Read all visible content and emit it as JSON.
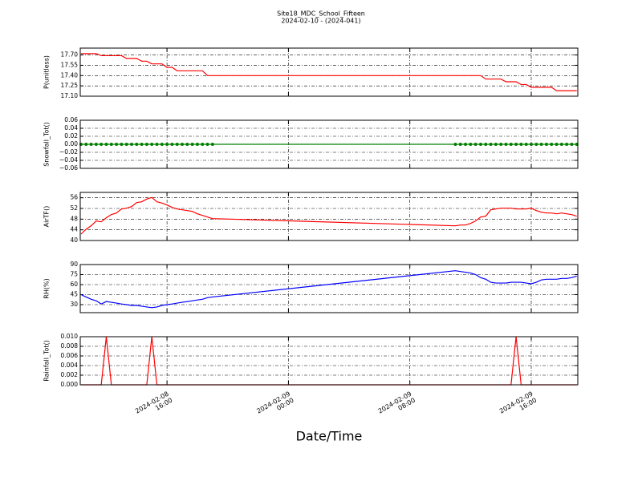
{
  "title": "Site18_MDC_School_Fifteen",
  "subtitle": "2024-02-10 - (2024-041)",
  "xlabel": "Date/Time",
  "xlim": [
    "2024-02-08 10:17",
    "2024-02-09 19:04"
  ],
  "xticks": [
    {
      "value": "2024-02-08 16:00",
      "label": "2024-02-08\n16:00"
    },
    {
      "value": "2024-02-09 00:00",
      "label": "2024-02-09\n00:00"
    },
    {
      "value": "2024-02-09 08:00",
      "label": "2024-02-09\n08:00"
    },
    {
      "value": "2024-02-09 16:00",
      "label": "2024-02-09\n16:00"
    }
  ],
  "chart_data": [
    {
      "type": "line",
      "ylabel": "P(unitless)",
      "x": [
        "2024-02-08 10:20",
        "2024-02-08 10:40",
        "2024-02-08 11:00",
        "2024-02-08 11:20",
        "2024-02-08 11:40",
        "2024-02-08 12:00",
        "2024-02-08 12:20",
        "2024-02-08 12:40",
        "2024-02-08 13:00",
        "2024-02-08 13:20",
        "2024-02-08 13:40",
        "2024-02-08 14:00",
        "2024-02-08 14:20",
        "2024-02-08 14:40",
        "2024-02-08 15:00",
        "2024-02-08 15:20",
        "2024-02-08 15:40",
        "2024-02-08 16:00",
        "2024-02-08 16:20",
        "2024-02-08 16:40",
        "2024-02-08 17:00",
        "2024-02-08 17:20",
        "2024-02-08 17:40",
        "2024-02-08 18:00",
        "2024-02-08 18:20",
        "2024-02-08 18:40",
        "2024-02-08 19:00",
        "2024-02-09 11:00",
        "2024-02-09 11:20",
        "2024-02-09 11:40",
        "2024-02-09 12:00",
        "2024-02-09 12:20",
        "2024-02-09 12:40",
        "2024-02-09 13:00",
        "2024-02-09 13:20",
        "2024-02-09 13:40",
        "2024-02-09 14:00",
        "2024-02-09 14:20",
        "2024-02-09 14:40",
        "2024-02-09 15:00",
        "2024-02-09 15:20",
        "2024-02-09 15:40",
        "2024-02-09 16:00",
        "2024-02-09 16:20",
        "2024-02-09 16:40",
        "2024-02-09 17:00",
        "2024-02-09 17:20",
        "2024-02-09 17:40",
        "2024-02-09 18:00",
        "2024-02-09 18:20",
        "2024-02-09 18:40",
        "2024-02-09 19:00"
      ],
      "series": [
        {
          "color": "#ff0000",
          "values": [
            17.72,
            17.72,
            17.72,
            17.72,
            17.69,
            17.69,
            17.69,
            17.69,
            17.69,
            17.65,
            17.65,
            17.65,
            17.61,
            17.61,
            17.57,
            17.57,
            17.57,
            17.52,
            17.52,
            17.47,
            17.47,
            17.47,
            17.47,
            17.47,
            17.47,
            17.4,
            17.4,
            17.4,
            17.4,
            17.4,
            17.4,
            17.4,
            17.4,
            17.35,
            17.35,
            17.35,
            17.35,
            17.31,
            17.31,
            17.31,
            17.27,
            17.27,
            17.23,
            17.23,
            17.23,
            17.23,
            17.23,
            17.18,
            17.18,
            17.18,
            17.18,
            17.18
          ]
        }
      ],
      "ylim": [
        17.1,
        17.8
      ],
      "yticks": [
        {
          "value": 17.1,
          "label": "17.10"
        },
        {
          "value": 17.25,
          "label": "17.25"
        },
        {
          "value": 17.4,
          "label": "17.40"
        },
        {
          "value": 17.55,
          "label": "17.55"
        },
        {
          "value": 17.7,
          "label": "17.70"
        }
      ],
      "grid": true
    },
    {
      "type": "line",
      "ylabel": "Snowfall_Tot()",
      "x": [
        "2024-02-08 10:20",
        "2024-02-08 10:40",
        "2024-02-08 11:00",
        "2024-02-08 11:20",
        "2024-02-08 11:40",
        "2024-02-08 12:00",
        "2024-02-08 12:20",
        "2024-02-08 12:40",
        "2024-02-08 13:00",
        "2024-02-08 13:20",
        "2024-02-08 13:40",
        "2024-02-08 14:00",
        "2024-02-08 14:20",
        "2024-02-08 14:40",
        "2024-02-08 15:00",
        "2024-02-08 15:20",
        "2024-02-08 15:40",
        "2024-02-08 16:00",
        "2024-02-08 16:20",
        "2024-02-08 16:40",
        "2024-02-08 17:00",
        "2024-02-08 17:20",
        "2024-02-08 17:40",
        "2024-02-08 18:00",
        "2024-02-08 18:20",
        "2024-02-08 18:40",
        "2024-02-08 19:00",
        "2024-02-09 11:00",
        "2024-02-09 11:20",
        "2024-02-09 11:40",
        "2024-02-09 12:00",
        "2024-02-09 12:20",
        "2024-02-09 12:40",
        "2024-02-09 13:00",
        "2024-02-09 13:20",
        "2024-02-09 13:40",
        "2024-02-09 14:00",
        "2024-02-09 14:20",
        "2024-02-09 14:40",
        "2024-02-09 15:00",
        "2024-02-09 15:20",
        "2024-02-09 15:40",
        "2024-02-09 16:00",
        "2024-02-09 16:20",
        "2024-02-09 16:40",
        "2024-02-09 17:00",
        "2024-02-09 17:20",
        "2024-02-09 17:40",
        "2024-02-09 18:00",
        "2024-02-09 18:20",
        "2024-02-09 18:40",
        "2024-02-09 19:00"
      ],
      "series": [
        {
          "color": "#008000",
          "markers": true,
          "values": [
            0,
            0,
            0,
            0,
            0,
            0,
            0,
            0,
            0,
            0,
            0,
            0,
            0,
            0,
            0,
            0,
            0,
            0,
            0,
            0,
            0,
            0,
            0,
            0,
            0,
            0,
            0,
            0,
            0,
            0,
            0,
            0,
            0,
            0,
            0,
            0,
            0,
            0,
            0,
            0,
            0,
            0,
            0,
            0,
            0,
            0,
            0,
            0,
            0,
            0,
            0,
            0
          ]
        }
      ],
      "ylim": [
        -0.06,
        0.06
      ],
      "yticks": [
        {
          "value": -0.06,
          "label": "−0.06"
        },
        {
          "value": -0.04,
          "label": "−0.04"
        },
        {
          "value": -0.02,
          "label": "−0.02"
        },
        {
          "value": 0,
          "label": "0.00"
        },
        {
          "value": 0.02,
          "label": "0.02"
        },
        {
          "value": 0.04,
          "label": "0.04"
        },
        {
          "value": 0.06,
          "label": "0.06"
        }
      ],
      "grid": true
    },
    {
      "type": "line",
      "ylabel": "AirTF()",
      "x": [
        "2024-02-08 10:20",
        "2024-02-08 10:40",
        "2024-02-08 11:00",
        "2024-02-08 11:20",
        "2024-02-08 11:40",
        "2024-02-08 12:00",
        "2024-02-08 12:20",
        "2024-02-08 12:40",
        "2024-02-08 13:00",
        "2024-02-08 13:20",
        "2024-02-08 13:40",
        "2024-02-08 14:00",
        "2024-02-08 14:20",
        "2024-02-08 14:40",
        "2024-02-08 15:00",
        "2024-02-08 15:20",
        "2024-02-08 15:40",
        "2024-02-08 16:00",
        "2024-02-08 16:20",
        "2024-02-08 16:40",
        "2024-02-08 17:00",
        "2024-02-08 17:20",
        "2024-02-08 17:40",
        "2024-02-08 18:00",
        "2024-02-08 18:20",
        "2024-02-08 18:40",
        "2024-02-08 19:00",
        "2024-02-09 11:00",
        "2024-02-09 11:20",
        "2024-02-09 11:40",
        "2024-02-09 12:00",
        "2024-02-09 12:20",
        "2024-02-09 12:40",
        "2024-02-09 13:00",
        "2024-02-09 13:20",
        "2024-02-09 13:40",
        "2024-02-09 14:00",
        "2024-02-09 14:20",
        "2024-02-09 14:40",
        "2024-02-09 15:00",
        "2024-02-09 15:20",
        "2024-02-09 15:40",
        "2024-02-09 16:00",
        "2024-02-09 16:20",
        "2024-02-09 16:40",
        "2024-02-09 17:00",
        "2024-02-09 17:20",
        "2024-02-09 17:40",
        "2024-02-09 18:00",
        "2024-02-09 18:20",
        "2024-02-09 18:40",
        "2024-02-09 19:00"
      ],
      "series": [
        {
          "color": "#ff0000",
          "values": [
            42.4,
            44.2,
            45.5,
            47.3,
            47.0,
            48.5,
            49.7,
            50.3,
            51.8,
            52.1,
            52.7,
            54.2,
            54.5,
            55.5,
            56.1,
            54.5,
            54.0,
            53.3,
            52.4,
            51.8,
            51.5,
            51.2,
            50.9,
            50.0,
            49.4,
            48.8,
            48.2,
            45.5,
            45.8,
            45.8,
            46.4,
            47.3,
            48.8,
            49.1,
            51.5,
            51.8,
            52.1,
            52.1,
            52.1,
            51.8,
            51.8,
            51.8,
            52.1,
            51.2,
            50.6,
            50.3,
            50.3,
            50.0,
            50.3,
            50.0,
            49.7,
            49.1
          ]
        }
      ],
      "ylim": [
        40,
        58
      ],
      "yticks": [
        40,
        44,
        48,
        52,
        56
      ],
      "grid": true
    },
    {
      "type": "line",
      "ylabel": "RH(%)",
      "x": [
        "2024-02-08 10:20",
        "2024-02-08 10:40",
        "2024-02-08 11:00",
        "2024-02-08 11:20",
        "2024-02-08 11:40",
        "2024-02-08 12:00",
        "2024-02-08 12:20",
        "2024-02-08 12:40",
        "2024-02-08 13:00",
        "2024-02-08 13:20",
        "2024-02-08 13:40",
        "2024-02-08 14:00",
        "2024-02-08 14:20",
        "2024-02-08 14:40",
        "2024-02-08 15:00",
        "2024-02-08 15:20",
        "2024-02-08 15:40",
        "2024-02-08 16:00",
        "2024-02-08 16:20",
        "2024-02-08 16:40",
        "2024-02-08 17:00",
        "2024-02-08 17:20",
        "2024-02-08 17:40",
        "2024-02-08 18:00",
        "2024-02-08 18:20",
        "2024-02-08 18:40",
        "2024-02-08 19:00",
        "2024-02-09 11:00",
        "2024-02-09 11:20",
        "2024-02-09 11:40",
        "2024-02-09 12:00",
        "2024-02-09 12:20",
        "2024-02-09 12:40",
        "2024-02-09 13:00",
        "2024-02-09 13:20",
        "2024-02-09 13:40",
        "2024-02-09 14:00",
        "2024-02-09 14:20",
        "2024-02-09 14:40",
        "2024-02-09 15:00",
        "2024-02-09 15:20",
        "2024-02-09 15:40",
        "2024-02-09 16:00",
        "2024-02-09 16:20",
        "2024-02-09 16:40",
        "2024-02-09 17:00",
        "2024-02-09 17:20",
        "2024-02-09 17:40",
        "2024-02-09 18:00",
        "2024-02-09 18:20",
        "2024-02-09 18:40",
        "2024-02-09 19:00"
      ],
      "series": [
        {
          "color": "#0000ff",
          "values": [
            45,
            41.5,
            38,
            35.8,
            31,
            34.6,
            33.5,
            32.3,
            31,
            30,
            28.8,
            28.8,
            27.7,
            26.5,
            25.4,
            26.5,
            28.8,
            30,
            31,
            32.3,
            33.5,
            34.6,
            35.8,
            37,
            38,
            40.4,
            41.5,
            80.8,
            79.6,
            78.5,
            77.3,
            75,
            70.4,
            68,
            63.5,
            62.3,
            62.3,
            62.3,
            63.5,
            63.5,
            63.5,
            62.3,
            61.2,
            63.5,
            67,
            68,
            68,
            68,
            69.2,
            69.2,
            70.4,
            72.7
          ]
        }
      ],
      "ylim": [
        18,
        90
      ],
      "yticks": [
        30,
        45,
        60,
        75,
        90
      ],
      "grid": true
    },
    {
      "type": "line",
      "ylabel": "Rainfall_Tot()",
      "x": [
        "2024-02-08 10:20",
        "2024-02-08 10:40",
        "2024-02-08 11:00",
        "2024-02-08 11:20",
        "2024-02-08 11:40",
        "2024-02-08 12:00",
        "2024-02-08 12:20",
        "2024-02-08 12:40",
        "2024-02-08 13:00",
        "2024-02-08 13:20",
        "2024-02-08 13:40",
        "2024-02-08 14:00",
        "2024-02-08 14:20",
        "2024-02-08 14:40",
        "2024-02-08 15:00",
        "2024-02-08 15:20",
        "2024-02-08 15:40",
        "2024-02-08 16:00",
        "2024-02-08 16:20",
        "2024-02-08 16:40",
        "2024-02-08 17:00",
        "2024-02-08 17:20",
        "2024-02-08 17:40",
        "2024-02-08 18:00",
        "2024-02-08 18:20",
        "2024-02-08 18:40",
        "2024-02-08 19:00",
        "2024-02-09 11:00",
        "2024-02-09 11:20",
        "2024-02-09 11:40",
        "2024-02-09 12:00",
        "2024-02-09 12:20",
        "2024-02-09 12:40",
        "2024-02-09 13:00",
        "2024-02-09 13:20",
        "2024-02-09 13:40",
        "2024-02-09 14:00",
        "2024-02-09 14:20",
        "2024-02-09 14:40",
        "2024-02-09 15:00",
        "2024-02-09 15:20",
        "2024-02-09 15:40",
        "2024-02-09 16:00",
        "2024-02-09 16:20",
        "2024-02-09 16:40",
        "2024-02-09 17:00",
        "2024-02-09 17:20",
        "2024-02-09 17:40",
        "2024-02-09 18:00",
        "2024-02-09 18:20",
        "2024-02-09 18:40",
        "2024-02-09 19:00"
      ],
      "series": [
        {
          "color": "#ff0000",
          "values": [
            0,
            0,
            0,
            0,
            0,
            0.01,
            0,
            0,
            0,
            0,
            0,
            0,
            0,
            0,
            0.01,
            0,
            0,
            0,
            0,
            0,
            0,
            0,
            0,
            0,
            0,
            0,
            0,
            0,
            0,
            0,
            0,
            0,
            0,
            0,
            0,
            0,
            0,
            0,
            0,
            0.01,
            0,
            0,
            0,
            0,
            0,
            0,
            0,
            0,
            0,
            0,
            0,
            0
          ]
        }
      ],
      "ylim": [
        0,
        0.01
      ],
      "yticks": [
        {
          "value": 0,
          "label": "0.000"
        },
        {
          "value": 0.002,
          "label": "0.002"
        },
        {
          "value": 0.004,
          "label": "0.004"
        },
        {
          "value": 0.006,
          "label": "0.006"
        },
        {
          "value": 0.008,
          "label": "0.008"
        },
        {
          "value": 0.01,
          "label": "0.010"
        }
      ],
      "grid": true
    }
  ]
}
